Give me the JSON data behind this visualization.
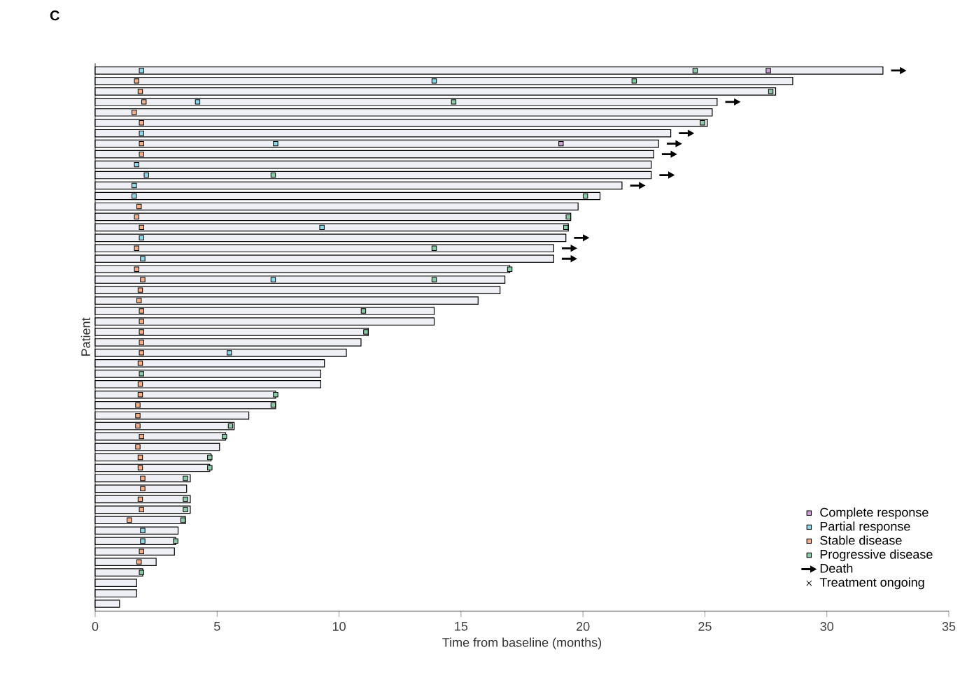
{
  "chart_data": {
    "type": "bar",
    "orientation": "horizontal",
    "title": "C",
    "xlabel": "Time from baseline (months)",
    "ylabel": "Patient",
    "categories": [
      null,
      null,
      null,
      null,
      null,
      null,
      null,
      null,
      null,
      null,
      null,
      null,
      null,
      null,
      null,
      null,
      null,
      null,
      null,
      null,
      null,
      null,
      null,
      null,
      null,
      null,
      null,
      null,
      null,
      null,
      null,
      null,
      null,
      null,
      null,
      null,
      null,
      null,
      null,
      null,
      null,
      null,
      null,
      null,
      null,
      null,
      null,
      null,
      null,
      null,
      null,
      null
    ],
    "xlim": [
      0,
      35
    ],
    "xticks": [
      0,
      5,
      10,
      15,
      20,
      25,
      30,
      35
    ],
    "tick_labels": "x",
    "legend": "bottom right",
    "grid": false,
    "series": [
      {
        "color": "#eef0f5",
        "values": [
          32.3,
          28.6,
          27.9,
          25.5,
          25.3,
          25.1,
          23.6,
          23.1,
          22.9,
          22.8,
          22.8,
          21.6,
          20.7,
          19.8,
          19.5,
          19.4,
          19.3,
          18.8,
          18.8,
          17.0,
          16.8,
          16.6,
          15.7,
          13.9,
          13.9,
          11.2,
          10.9,
          10.3,
          9.4,
          9.25,
          9.25,
          7.4,
          7.4,
          6.3,
          5.7,
          5.35,
          5.1,
          4.75,
          4.7,
          3.9,
          3.75,
          3.9,
          3.9,
          3.7,
          3.4,
          3.3,
          3.25,
          2.5,
          1.95,
          1.7,
          1.7,
          1.0
        ]
      },
      {
        "name": "Complete response",
        "type": "scatter",
        "marker": "square",
        "color": "#c9a0d0",
        "values": [
          27.6,
          null,
          null,
          null,
          null,
          null,
          null,
          19.1,
          null,
          null,
          null,
          null,
          null,
          null,
          null,
          null,
          null,
          null,
          null,
          null,
          null,
          null,
          null,
          null,
          null,
          null,
          null,
          null,
          null,
          null,
          null,
          null,
          null,
          null,
          null,
          null,
          null,
          null,
          null,
          null,
          null,
          null,
          null,
          null,
          null,
          null,
          null,
          null,
          null,
          null,
          null,
          null
        ]
      },
      {
        "name": "Partial response",
        "type": "scatter",
        "marker": "square",
        "color": "#8fd8e8",
        "values": [
          1.9,
          13.9,
          null,
          4.2,
          null,
          null,
          1.9,
          7.4,
          null,
          1.7,
          2.1,
          1.6,
          1.6,
          null,
          null,
          9.3,
          1.9,
          null,
          1.95,
          null,
          7.3,
          null,
          null,
          null,
          null,
          null,
          null,
          5.5,
          null,
          null,
          null,
          null,
          null,
          null,
          null,
          null,
          null,
          null,
          null,
          null,
          null,
          null,
          null,
          null,
          1.95,
          1.95,
          null,
          null,
          null,
          null,
          null,
          null
        ]
      },
      {
        "name": "Stable disease",
        "type": "scatter",
        "marker": "square",
        "color": "#f5b08a",
        "values": [
          null,
          1.7,
          1.85,
          2.0,
          1.6,
          1.9,
          null,
          1.9,
          1.9,
          null,
          null,
          null,
          null,
          1.8,
          1.7,
          1.9,
          null,
          1.7,
          null,
          1.7,
          1.95,
          1.85,
          1.8,
          1.9,
          1.9,
          1.9,
          1.9,
          1.9,
          1.85,
          null,
          1.85,
          1.85,
          1.75,
          1.75,
          1.75,
          1.9,
          1.75,
          1.85,
          1.85,
          1.95,
          1.95,
          1.85,
          1.9,
          1.4,
          null,
          null,
          1.9,
          1.8,
          null,
          null,
          null,
          null
        ]
      },
      {
        "name": "Progressive disease",
        "type": "scatter",
        "marker": "square",
        "color": "#8cc9a8",
        "values": [
          24.6,
          22.1,
          27.7,
          14.7,
          null,
          24.9,
          null,
          null,
          null,
          null,
          7.3,
          null,
          20.1,
          null,
          19.4,
          19.3,
          null,
          13.9,
          null,
          17.0,
          13.9,
          null,
          null,
          11.0,
          null,
          11.1,
          null,
          null,
          null,
          1.9,
          null,
          7.4,
          7.3,
          null,
          5.55,
          5.3,
          null,
          4.7,
          4.7,
          3.7,
          null,
          3.7,
          3.7,
          3.6,
          null,
          3.3,
          null,
          null,
          1.9,
          null,
          null,
          null
        ]
      },
      {
        "name": "Death",
        "type": "scatter",
        "color": "#000000",
        "values": [
          32.95,
          null,
          null,
          26.15,
          null,
          null,
          24.25,
          23.75,
          23.55,
          null,
          23.45,
          22.25,
          null,
          null,
          null,
          null,
          19.95,
          19.45,
          19.45,
          null,
          null,
          null,
          null,
          null,
          null,
          null,
          null,
          null,
          null,
          null,
          null,
          null,
          null,
          null,
          null,
          null,
          null,
          null,
          null,
          null,
          null,
          null,
          null,
          null,
          null,
          null,
          null,
          null,
          null,
          null,
          null,
          null
        ]
      },
      {
        "name": "Treatment ongoing",
        "type": "scatter",
        "marker": "cross",
        "color": "#000000",
        "values": [
          null,
          null,
          null,
          null,
          null,
          null,
          null,
          null,
          null,
          null,
          null,
          null,
          null,
          null,
          null,
          null,
          null,
          null,
          null,
          null,
          null,
          null,
          null,
          null,
          null,
          null,
          null,
          null,
          null,
          null,
          null,
          null,
          null,
          null,
          null,
          null,
          null,
          null,
          null,
          null,
          null,
          null,
          null,
          null,
          null,
          null,
          null,
          null,
          null,
          null,
          null,
          null
        ]
      }
    ]
  }
}
